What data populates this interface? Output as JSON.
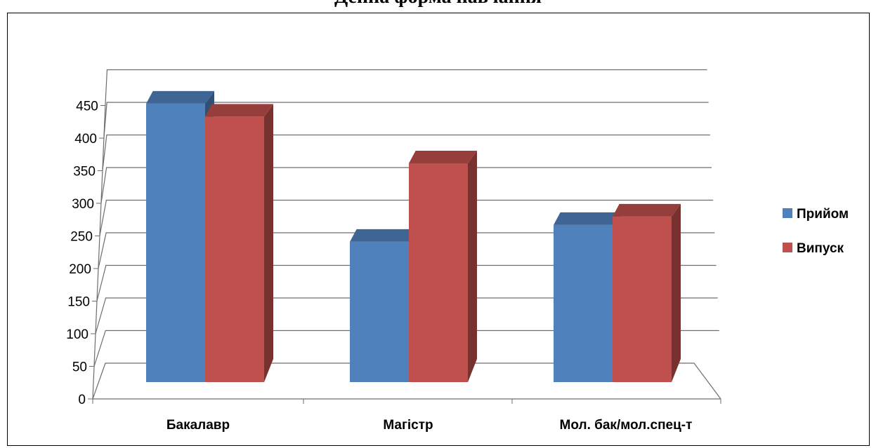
{
  "chart_data": {
    "type": "bar",
    "title": "Денна форма навчання",
    "categories": [
      "Бакалавр",
      "Магістр",
      "Мол. бак/мол.спец-т"
    ],
    "series": [
      {
        "name": "Прийом",
        "values": [
          425,
          212,
          238
        ],
        "color": "#4F81BD"
      },
      {
        "name": "Випуск",
        "values": [
          405,
          333,
          251
        ],
        "color": "#C0504D"
      }
    ],
    "yticks": [
      "0",
      "50",
      "100",
      "150",
      "200",
      "250",
      "300",
      "350",
      "400",
      "450"
    ],
    "ylim": [
      0,
      450
    ],
    "grid": true,
    "legend_position": "right",
    "three_d": true
  }
}
